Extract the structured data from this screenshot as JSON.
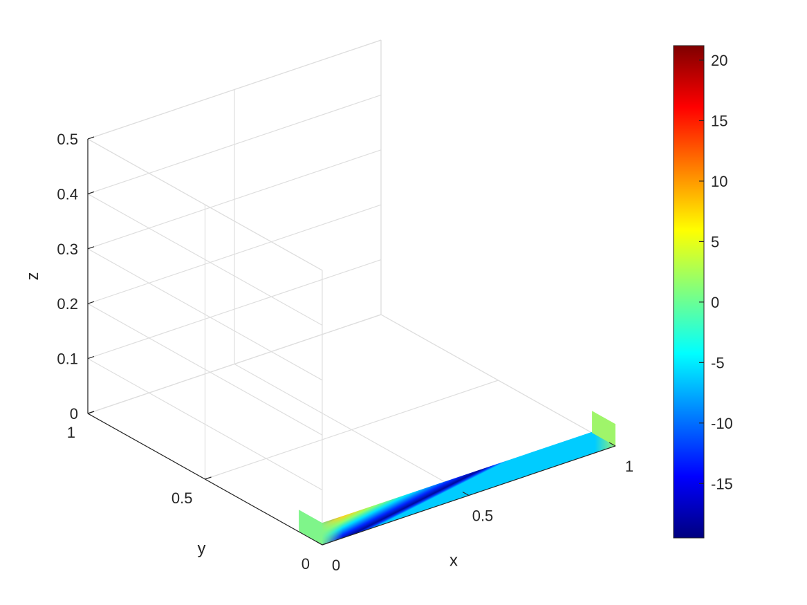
{
  "chart_data": {
    "type": "surface3d",
    "title": "",
    "xlabel": "x",
    "ylabel": "y",
    "zlabel": "z",
    "xlim": [
      0,
      1
    ],
    "ylim": [
      0,
      1
    ],
    "zlim": [
      0,
      0.5
    ],
    "x_ticks": [
      {
        "value": 0,
        "label": "0"
      },
      {
        "value": 0.5,
        "label": "0.5"
      },
      {
        "value": 1,
        "label": "1"
      }
    ],
    "y_ticks": [
      {
        "value": 0,
        "label": "0"
      },
      {
        "value": 0.5,
        "label": "0.5"
      },
      {
        "value": 1,
        "label": "1"
      }
    ],
    "z_ticks": [
      {
        "value": 0,
        "label": "0"
      },
      {
        "value": 0.1,
        "label": "0.1"
      },
      {
        "value": 0.2,
        "label": "0.2"
      },
      {
        "value": 0.3,
        "label": "0.3"
      },
      {
        "value": 0.4,
        "label": "0.4"
      },
      {
        "value": 0.5,
        "label": "0.5"
      }
    ],
    "grid": true,
    "colormap": "jet",
    "colorbar": {
      "range": [
        -19.5,
        21.2
      ],
      "ticks": [
        {
          "value": 20,
          "label": "20"
        },
        {
          "value": 15,
          "label": "15"
        },
        {
          "value": 10,
          "label": "10"
        },
        {
          "value": 5,
          "label": "5"
        },
        {
          "value": 0,
          "label": "0"
        },
        {
          "value": -5,
          "label": "-5"
        },
        {
          "value": -10,
          "label": "-10"
        },
        {
          "value": -15,
          "label": "-15"
        }
      ],
      "placement": "right"
    },
    "surfaces": [
      {
        "plane": "y",
        "position": 0,
        "x_range": [
          0,
          1
        ],
        "z_range": [
          0,
          0.04
        ]
      },
      {
        "plane": "x",
        "position": 0,
        "y_range": [
          0,
          0.1
        ],
        "z_range": [
          0,
          0.04
        ]
      },
      {
        "plane": "x",
        "position": 1,
        "y_range": [
          0,
          0.1
        ],
        "z_range": [
          0,
          0.04
        ]
      }
    ]
  }
}
